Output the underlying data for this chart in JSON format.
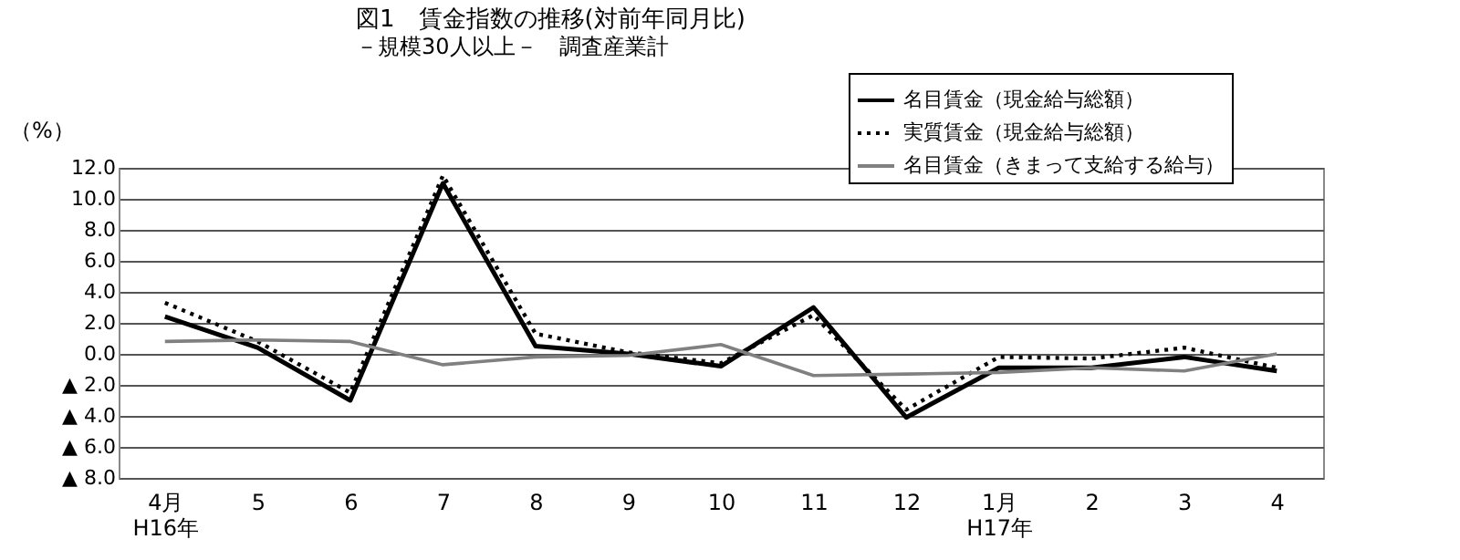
{
  "chart_data": {
    "type": "line",
    "title": "図1　賃金指数の推移(対前年同月比)",
    "subtitle": "－規模30人以上－　調査産業計",
    "ylabel": "（%）",
    "categories": [
      "4月\nH16年",
      "5",
      "6",
      "7",
      "8",
      "9",
      "10",
      "11",
      "12",
      "1月\nH17年",
      "2",
      "3",
      "4"
    ],
    "series": [
      {
        "name": "名目賃金（現金給与総額）",
        "color": "#000000",
        "line_style": "solid",
        "values": [
          2.4,
          0.4,
          -3.0,
          11.0,
          0.5,
          0.0,
          -0.8,
          3.0,
          -4.1,
          -0.9,
          -0.9,
          -0.2,
          -1.1
        ]
      },
      {
        "name": "実質賃金（現金給与総額）",
        "color": "#000000",
        "line_style": "dotted",
        "values": [
          3.3,
          0.8,
          -2.5,
          11.5,
          1.3,
          0.1,
          -0.6,
          2.5,
          -3.6,
          -0.2,
          -0.3,
          0.4,
          -0.9
        ]
      },
      {
        "name": "名目賃金（きまって支給する給与）",
        "color": "#808080",
        "line_style": "solid",
        "values": [
          0.8,
          0.9,
          0.8,
          -0.7,
          -0.2,
          -0.1,
          0.6,
          -1.4,
          -1.3,
          -1.2,
          -0.9,
          -1.1,
          0.0
        ]
      }
    ],
    "ylim": [
      -8,
      12
    ],
    "yticks": [
      {
        "value": 12,
        "label": "12.0"
      },
      {
        "value": 10,
        "label": "10.0"
      },
      {
        "value": 8,
        "label": "8.0"
      },
      {
        "value": 6,
        "label": "6.0"
      },
      {
        "value": 4,
        "label": "4.0"
      },
      {
        "value": 2,
        "label": "2.0"
      },
      {
        "value": 0,
        "label": "0.0"
      },
      {
        "value": -2,
        "label": "▲ 2.0"
      },
      {
        "value": -4,
        "label": "▲ 4.0"
      },
      {
        "value": -6,
        "label": "▲ 6.0"
      },
      {
        "value": -8,
        "label": "▲ 8.0"
      }
    ],
    "grid": "y",
    "legend": "top right",
    "marker": "none"
  }
}
